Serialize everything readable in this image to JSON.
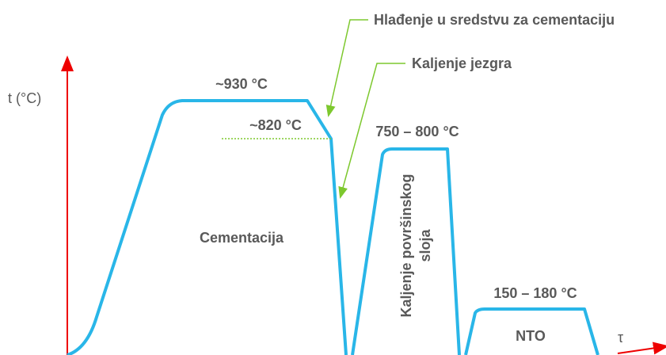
{
  "axes": {
    "y_label": "t (°C)",
    "x_label": "τ"
  },
  "temperatures": {
    "carburizing": "~930 °C",
    "core": "~820 °C",
    "surface": "750 – 800 °C",
    "tempering": "150 – 180 °C"
  },
  "phases": {
    "carburizing": "Cementacija",
    "surface_hardening": [
      "Kaljenje površinskog",
      "sloja"
    ],
    "tempering": "NTO"
  },
  "callouts": {
    "cooling": "Hlađenje u sredstvu za cementaciju",
    "core_hardening": "Kaljenje jezgra"
  }
}
